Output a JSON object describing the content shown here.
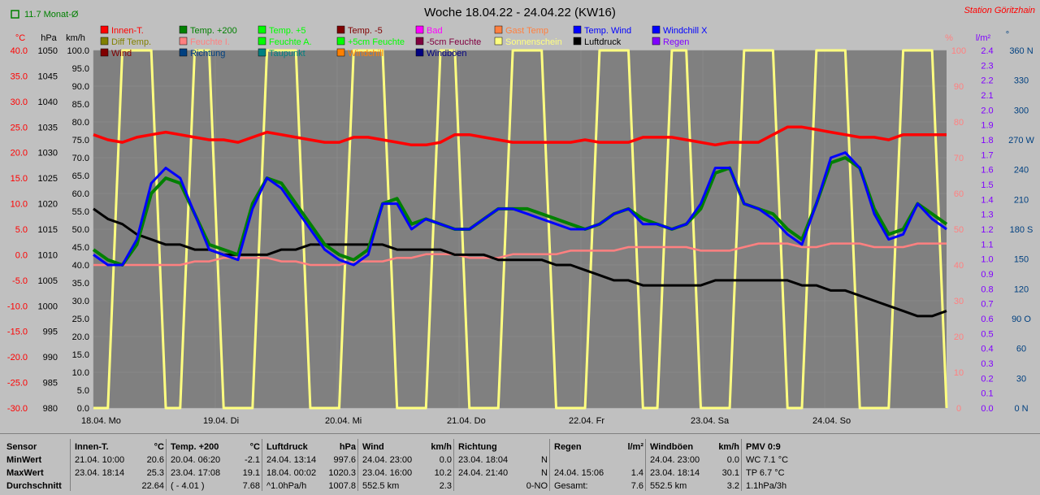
{
  "title": "Woche 18.04.22 - 24.04.22 (KW16)",
  "station": "Station Göritzhain",
  "monthly_avg": "11.7 Monat-Ø",
  "axis_units": {
    "temp": "°C",
    "press": "hPa",
    "wind": "km/h",
    "pct": "%",
    "rain": "l/m²",
    "dir": "°"
  },
  "chart_data": {
    "type": "line",
    "x_labels": [
      "18.04. Mo",
      "19.04. Di",
      "20.04. Mi",
      "21.04. Do",
      "22.04. Fr",
      "23.04. Sa",
      "24.04. So"
    ],
    "axes": {
      "temp": {
        "min": -30,
        "max": 40,
        "ticks": [
          "40.0",
          "35.0",
          "30.0",
          "25.0",
          "20.0",
          "15.0",
          "10.0",
          "5.0",
          "0.0",
          "-5.0",
          "-10.0",
          "-15.0",
          "-20.0",
          "-25.0",
          "-30.0"
        ]
      },
      "press": {
        "min": 980,
        "max": 1050,
        "ticks": [
          "1050",
          "1045",
          "1040",
          "1035",
          "1030",
          "1025",
          "1020",
          "1015",
          "1010",
          "1005",
          "1000",
          "995",
          "990",
          "985",
          "980"
        ]
      },
      "wind": {
        "min": 0,
        "max": 100,
        "ticks": [
          "100.0",
          "95.0",
          "90.0",
          "85.0",
          "80.0",
          "75.0",
          "70.0",
          "65.0",
          "60.0",
          "55.0",
          "50.0",
          "45.0",
          "40.0",
          "35.0",
          "30.0",
          "25.0",
          "20.0",
          "15.0",
          "10.0",
          "5.0",
          "0.0"
        ]
      },
      "pct": {
        "min": 0,
        "max": 100,
        "ticks": [
          "100",
          "90",
          "80",
          "70",
          "60",
          "50",
          "40",
          "30",
          "20",
          "10",
          "0"
        ]
      },
      "rain": {
        "min": 0,
        "max": 2.5,
        "ticks": [
          "2.4",
          "2.3",
          "2.2",
          "2.1",
          "2.0",
          "1.9",
          "1.8",
          "1.7",
          "1.6",
          "1.5",
          "1.4",
          "1.3",
          "1.2",
          "1.1",
          "1.0",
          "0.9",
          "0.8",
          "0.7",
          "0.6",
          "0.5",
          "0.4",
          "0.3",
          "0.2",
          "0.1",
          "0.0"
        ]
      },
      "dir": {
        "min": 0,
        "max": 360,
        "ticks": [
          "360 N",
          "330",
          "300",
          "270 W",
          "240",
          "210",
          "180 S",
          "150",
          "120",
          "90 O",
          "60",
          "30",
          "0 N"
        ]
      }
    },
    "legend": [
      {
        "name": "Innen-T.",
        "color": "#ff0000"
      },
      {
        "name": "Temp. +200",
        "color": "#008000"
      },
      {
        "name": "Temp. +5",
        "color": "#00ff00"
      },
      {
        "name": "Temp. -5",
        "color": "#800000"
      },
      {
        "name": "Bad",
        "color": "#ff00ff"
      },
      {
        "name": "Gast Temp",
        "color": "#ff8040"
      },
      {
        "name": "Temp. Wind",
        "color": "#0000ff"
      },
      {
        "name": "Windchill X",
        "color": "#0000ff"
      },
      {
        "name": "Diff Temp.",
        "color": "#808000"
      },
      {
        "name": "Feuchte I.",
        "color": "#ff8080"
      },
      {
        "name": "Feuchte A.",
        "color": "#00ff00"
      },
      {
        "name": "+5cm Feuchte",
        "color": "#00ff00"
      },
      {
        "name": "-5cm Feuchte",
        "color": "#800040"
      },
      {
        "name": "Sonnenschein",
        "color": "#ffff80"
      },
      {
        "name": "Luftdruck",
        "color": "#000000"
      },
      {
        "name": "Regen",
        "color": "#8000ff"
      },
      {
        "name": "Wind",
        "color": "#800000"
      },
      {
        "name": "Richtung",
        "color": "#004080"
      },
      {
        "name": "Taupunkt",
        "color": "#008080"
      },
      {
        "name": "Windchill",
        "color": "#ff8000"
      },
      {
        "name": "Windböen",
        "color": "#000080"
      }
    ],
    "series": [
      {
        "name": "Innen-T.",
        "axis": "temp",
        "values": [
          23.5,
          22.5,
          22.0,
          23.0,
          23.5,
          24.0,
          23.5,
          23.0,
          22.5,
          22.5,
          22.0,
          23.0,
          24.0,
          23.5,
          23.0,
          22.5,
          22.0,
          22.0,
          23.0,
          23.0,
          22.5,
          22.0,
          21.5,
          21.5,
          22.0,
          23.5,
          23.5,
          23.0,
          22.5,
          22.0,
          22.0,
          22.0,
          22.0,
          22.0,
          22.5,
          22.0,
          22.0,
          22.0,
          23.0,
          23.0,
          23.0,
          22.5,
          22.0,
          21.5,
          22.0,
          22.0,
          22.0,
          23.5,
          25.0,
          25.0,
          24.5,
          24.0,
          23.5,
          23.0,
          23.0,
          22.5,
          23.5,
          23.5,
          23.5,
          23.5
        ]
      },
      {
        "name": "Temp. +200",
        "axis": "temp",
        "values": [
          1,
          -1,
          -2,
          2,
          12,
          15,
          14,
          8,
          2,
          1,
          0,
          10,
          15,
          14,
          10,
          6,
          2,
          0,
          -1,
          1,
          10,
          11,
          6,
          7,
          6,
          5,
          5,
          7,
          9,
          9,
          9,
          8,
          7,
          6,
          5,
          6,
          8,
          9,
          7,
          6,
          5,
          6,
          9,
          16,
          17,
          10,
          9,
          8,
          5,
          3,
          10,
          18,
          19,
          17,
          9,
          4,
          5,
          10,
          8,
          6
        ]
      },
      {
        "name": "Temp. Wind",
        "axis": "temp",
        "values": [
          0,
          -2,
          -2,
          3,
          14,
          17,
          15,
          8,
          1,
          0,
          -1,
          9,
          15,
          13,
          9,
          5,
          1,
          -1,
          -2,
          0,
          10,
          10,
          5,
          7,
          6,
          5,
          5,
          7,
          9,
          9,
          8,
          7,
          6,
          5,
          5,
          6,
          8,
          9,
          6,
          6,
          5,
          6,
          10,
          17,
          17,
          10,
          9,
          7,
          4,
          2,
          10,
          19,
          20,
          17,
          8,
          3,
          4,
          10,
          7,
          5
        ]
      },
      {
        "name": "Luftdruck",
        "axis": "press",
        "values": [
          1019,
          1017,
          1016,
          1014,
          1013,
          1012,
          1012,
          1011,
          1011,
          1010,
          1010,
          1010,
          1010,
          1011,
          1011,
          1012,
          1012,
          1012,
          1012,
          1012,
          1012,
          1011,
          1011,
          1011,
          1011,
          1010,
          1010,
          1010,
          1009,
          1009,
          1009,
          1009,
          1008,
          1008,
          1007,
          1006,
          1005,
          1005,
          1004,
          1004,
          1004,
          1004,
          1004,
          1005,
          1005,
          1005,
          1005,
          1005,
          1005,
          1004,
          1004,
          1003,
          1003,
          1002,
          1001,
          1000,
          999,
          998,
          998,
          999
        ]
      },
      {
        "name": "Feuchte I.",
        "axis": "pct",
        "values": [
          40,
          40,
          40,
          40,
          40,
          40,
          40,
          41,
          41,
          42,
          42,
          42,
          42,
          41,
          41,
          40,
          40,
          40,
          41,
          41,
          41,
          42,
          42,
          43,
          43,
          43,
          42,
          42,
          42,
          43,
          43,
          43,
          43,
          44,
          44,
          44,
          44,
          45,
          45,
          45,
          45,
          45,
          44,
          44,
          44,
          45,
          46,
          46,
          46,
          45,
          45,
          46,
          46,
          46,
          45,
          45,
          45,
          46,
          46,
          46
        ]
      },
      {
        "name": "Sonnenschein",
        "axis": "pct",
        "values": [
          0,
          0,
          100,
          100,
          100,
          0,
          0,
          100,
          100,
          0,
          0,
          0,
          100,
          100,
          100,
          0,
          0,
          0,
          100,
          100,
          100,
          0,
          0,
          0,
          100,
          100,
          0,
          0,
          0,
          100,
          100,
          100,
          0,
          0,
          0,
          100,
          100,
          100,
          0,
          0,
          100,
          100,
          0,
          0,
          0,
          100,
          100,
          100,
          0,
          0,
          100,
          100,
          100,
          0,
          0,
          0,
          100,
          100,
          100,
          0
        ]
      }
    ]
  },
  "stats": {
    "row_labels": [
      "Sensor",
      "MinWert",
      "MaxWert",
      "Durchschnitt"
    ],
    "columns": [
      {
        "title": "Innen-T.",
        "unit": "°C",
        "rows": [
          [
            "21.04.  10:00",
            "20.6"
          ],
          [
            "23.04.  18:14",
            "25.3"
          ],
          [
            "",
            "22.64"
          ]
        ]
      },
      {
        "title": "Temp. +200",
        "unit": "°C",
        "rows": [
          [
            "20.04.  06:20",
            "-2.1"
          ],
          [
            "23.04.  17:08",
            "19.1"
          ],
          [
            "( - 4.01 )",
            "7.68"
          ]
        ]
      },
      {
        "title": "Luftdruck",
        "unit": "hPa",
        "rows": [
          [
            "24.04.  13:14",
            "997.6"
          ],
          [
            "18.04.  00:02",
            "1020.3"
          ],
          [
            "^1.0hPa/h",
            "1007.8"
          ]
        ]
      },
      {
        "title": "Wind",
        "unit": "km/h",
        "rows": [
          [
            "24.04.  23:00",
            "0.0"
          ],
          [
            "23.04.  16:00",
            "10.2"
          ],
          [
            "552.5 km",
            "2.3"
          ]
        ]
      },
      {
        "title": "Richtung",
        "unit": "",
        "rows": [
          [
            "23.04.  18:04",
            "N"
          ],
          [
            "24.04.  21:40",
            "N"
          ],
          [
            "",
            "0-NO"
          ]
        ]
      },
      {
        "title": "Regen",
        "unit": "l/m²",
        "rows": [
          [
            "",
            ""
          ],
          [
            "24.04.  15:06",
            "1.4"
          ],
          [
            "Gesamt:",
            "7.6"
          ]
        ]
      },
      {
        "title": "Windböen",
        "unit": "km/h",
        "rows": [
          [
            "24.04.  23:00",
            "0.0"
          ],
          [
            "23.04.  18:14",
            "30.1"
          ],
          [
            "552.5 km",
            "3.2"
          ]
        ]
      },
      {
        "title": "PMV 0:9",
        "unit": "",
        "rows": [
          [
            "WC 7.1 °C",
            ""
          ],
          [
            "TP 6.7 °C",
            ""
          ],
          [
            "1.1hPa/3h",
            ""
          ]
        ]
      }
    ]
  }
}
